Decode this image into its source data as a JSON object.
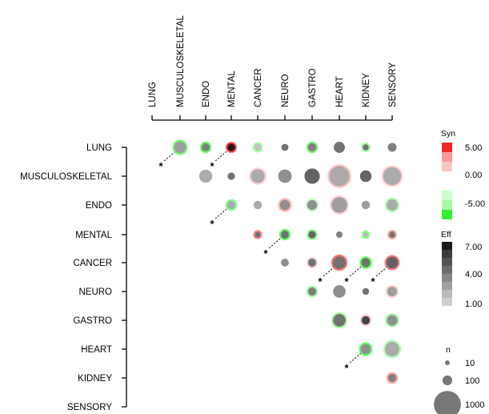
{
  "chart_data": {
    "type": "bubble-matrix",
    "categories": [
      "LUNG",
      "MUSCULOSKELETAL",
      "ENDO",
      "MENTAL",
      "CANCER",
      "NEURO",
      "GASTRO",
      "HEART",
      "KIDNEY",
      "SENSORY"
    ],
    "cells": [
      {
        "row": "LUNG",
        "col": "MUSCULOSKELETAL",
        "n": 180,
        "eff": 2.5,
        "syn": -3.5,
        "star": true
      },
      {
        "row": "LUNG",
        "col": "ENDO",
        "n": 50,
        "eff": 3.5,
        "syn": -4.0,
        "star": false
      },
      {
        "row": "LUNG",
        "col": "MENTAL",
        "n": 40,
        "eff": 7.0,
        "syn": 5.0,
        "star": true
      },
      {
        "row": "LUNG",
        "col": "CANCER",
        "n": 30,
        "eff": 1.2,
        "syn": -2.0,
        "star": false
      },
      {
        "row": "LUNG",
        "col": "NEURO",
        "n": 35,
        "eff": 4.0,
        "syn": 0,
        "star": false
      },
      {
        "row": "LUNG",
        "col": "GASTRO",
        "n": 60,
        "eff": 3.5,
        "syn": -3.0,
        "star": false
      },
      {
        "row": "LUNG",
        "col": "HEART",
        "n": 150,
        "eff": 4.0,
        "syn": 0,
        "star": false
      },
      {
        "row": "LUNG",
        "col": "KIDNEY",
        "n": 20,
        "eff": 4.0,
        "syn": -2.0,
        "star": false
      },
      {
        "row": "LUNG",
        "col": "SENSORY",
        "n": 70,
        "eff": 3.5,
        "syn": 0,
        "star": false
      },
      {
        "row": "MUSCULOSKELETAL",
        "col": "ENDO",
        "n": 250,
        "eff": 2.0,
        "syn": 0,
        "star": false
      },
      {
        "row": "MUSCULOSKELETAL",
        "col": "MENTAL",
        "n": 40,
        "eff": 4.0,
        "syn": 0,
        "star": false
      },
      {
        "row": "MUSCULOSKELETAL",
        "col": "CANCER",
        "n": 300,
        "eff": 2.0,
        "syn": 0.5,
        "star": false
      },
      {
        "row": "MUSCULOSKELETAL",
        "col": "NEURO",
        "n": 280,
        "eff": 3.0,
        "syn": 0,
        "star": false
      },
      {
        "row": "MUSCULOSKELETAL",
        "col": "GASTRO",
        "n": 430,
        "eff": 4.5,
        "syn": 0,
        "star": false
      },
      {
        "row": "MUSCULOSKELETAL",
        "col": "HEART",
        "n": 1000,
        "eff": 2.0,
        "syn": 1.0,
        "star": false
      },
      {
        "row": "MUSCULOSKELETAL",
        "col": "KIDNEY",
        "n": 170,
        "eff": 4.5,
        "syn": 0,
        "star": false
      },
      {
        "row": "MUSCULOSKELETAL",
        "col": "SENSORY",
        "n": 700,
        "eff": 2.0,
        "syn": 0.5,
        "star": false
      },
      {
        "row": "ENDO",
        "col": "MENTAL",
        "n": 50,
        "eff": 2.0,
        "syn": -3.0,
        "star": true
      },
      {
        "row": "ENDO",
        "col": "CANCER",
        "n": 60,
        "eff": 2.0,
        "syn": 0,
        "star": false
      },
      {
        "row": "ENDO",
        "col": "NEURO",
        "n": 110,
        "eff": 3.0,
        "syn": 1.5,
        "star": false
      },
      {
        "row": "ENDO",
        "col": "GASTRO",
        "n": 100,
        "eff": 3.0,
        "syn": -1.0,
        "star": false
      },
      {
        "row": "ENDO",
        "col": "HEART",
        "n": 450,
        "eff": 2.5,
        "syn": 0.5,
        "star": false
      },
      {
        "row": "ENDO",
        "col": "KIDNEY",
        "n": 60,
        "eff": 2.5,
        "syn": 0,
        "star": false
      },
      {
        "row": "ENDO",
        "col": "SENSORY",
        "n": 150,
        "eff": 2.0,
        "syn": -1.5,
        "star": false
      },
      {
        "row": "MENTAL",
        "col": "CANCER",
        "n": 15,
        "eff": 4.0,
        "syn": 3.0,
        "star": false
      },
      {
        "row": "MENTAL",
        "col": "NEURO",
        "n": 50,
        "eff": 4.0,
        "syn": -4.0,
        "star": true
      },
      {
        "row": "MENTAL",
        "col": "GASTRO",
        "n": 40,
        "eff": 4.5,
        "syn": -2.5,
        "star": false
      },
      {
        "row": "MENTAL",
        "col": "HEART",
        "n": 25,
        "eff": 3.5,
        "syn": 0,
        "star": false
      },
      {
        "row": "MENTAL",
        "col": "KIDNEY",
        "n": 10,
        "eff": 1.5,
        "syn": -3.0,
        "star": false
      },
      {
        "row": "MENTAL",
        "col": "SENSORY",
        "n": 20,
        "eff": 4.0,
        "syn": 2.0,
        "star": false
      },
      {
        "row": "CANCER",
        "col": "NEURO",
        "n": 50,
        "eff": 3.0,
        "syn": 0,
        "star": false
      },
      {
        "row": "CANCER",
        "col": "GASTRO",
        "n": 50,
        "eff": 4.0,
        "syn": 0.5,
        "star": false
      },
      {
        "row": "CANCER",
        "col": "HEART",
        "n": 230,
        "eff": 4.0,
        "syn": 3.5,
        "star": true
      },
      {
        "row": "CANCER",
        "col": "KIDNEY",
        "n": 70,
        "eff": 4.0,
        "syn": -4.5,
        "star": true
      },
      {
        "row": "CANCER",
        "col": "SENSORY",
        "n": 180,
        "eff": 4.5,
        "syn": 3.0,
        "star": true
      },
      {
        "row": "NEURO",
        "col": "GASTRO",
        "n": 60,
        "eff": 3.5,
        "syn": -1.5,
        "star": false
      },
      {
        "row": "NEURO",
        "col": "HEART",
        "n": 220,
        "eff": 3.0,
        "syn": 0,
        "star": false
      },
      {
        "row": "NEURO",
        "col": "KIDNEY",
        "n": 30,
        "eff": 4.0,
        "syn": 0,
        "star": false
      },
      {
        "row": "NEURO",
        "col": "SENSORY",
        "n": 90,
        "eff": 2.5,
        "syn": 0.5,
        "star": false
      },
      {
        "row": "GASTRO",
        "col": "HEART",
        "n": 220,
        "eff": 4.0,
        "syn": -2.0,
        "star": false
      },
      {
        "row": "GASTRO",
        "col": "KIDNEY",
        "n": 60,
        "eff": 5.5,
        "syn": 0.5,
        "star": false
      },
      {
        "row": "GASTRO",
        "col": "SENSORY",
        "n": 110,
        "eff": 3.0,
        "syn": -2.5,
        "star": false
      },
      {
        "row": "HEART",
        "col": "KIDNEY",
        "n": 110,
        "eff": 3.0,
        "syn": -4.0,
        "star": true
      },
      {
        "row": "HEART",
        "col": "SENSORY",
        "n": 350,
        "eff": 2.0,
        "syn": -1.5,
        "star": false
      },
      {
        "row": "KIDNEY",
        "col": "SENSORY",
        "n": 50,
        "eff": 3.5,
        "syn": 2.0,
        "star": false
      }
    ],
    "star_label": "*",
    "legend": {
      "syn": {
        "title": "Syn",
        "labels": [
          "5.00",
          "0.00",
          "-5.00"
        ],
        "range": [
          -5,
          5
        ]
      },
      "eff": {
        "title": "Eff",
        "labels": [
          "7.00",
          "4.00",
          "1.00"
        ],
        "range": [
          1,
          7
        ]
      },
      "n": {
        "title": "n",
        "values": [
          10,
          100,
          1000
        ],
        "labels": [
          "10",
          "100",
          "1000"
        ]
      }
    }
  }
}
